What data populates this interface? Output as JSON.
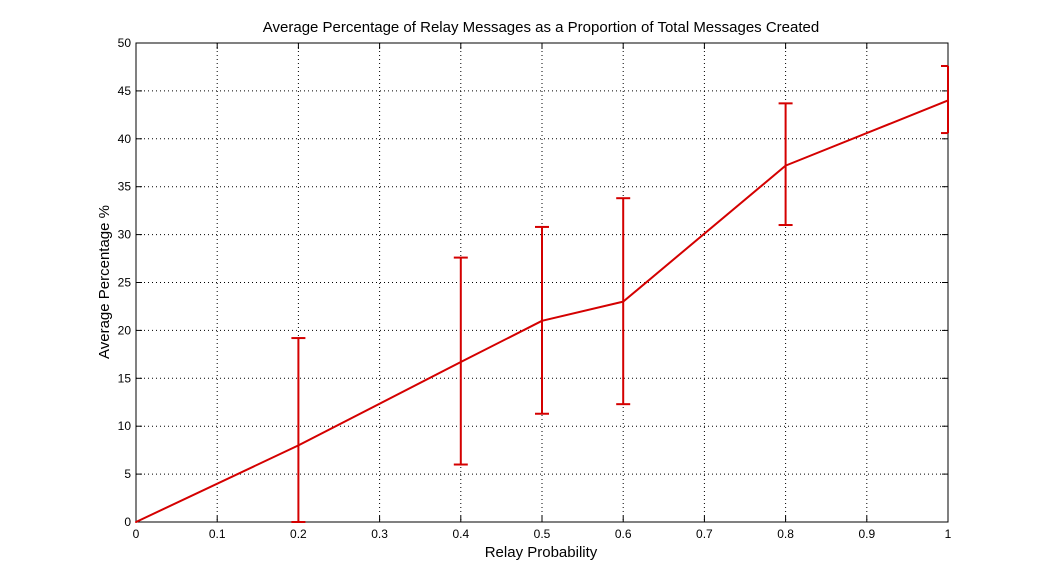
{
  "chart_data": {
    "type": "line",
    "title": "Average Percentage of Relay Messages as a Proportion of Total Messages Created",
    "xlabel": "Relay Probability",
    "ylabel": "Average Percentage %",
    "xlim": [
      0,
      1
    ],
    "ylim": [
      0,
      50
    ],
    "grid": true,
    "x_ticks": [
      "0",
      "0.1",
      "0.2",
      "0.3",
      "0.4",
      "0.5",
      "0.6",
      "0.7",
      "0.8",
      "0.9",
      "1"
    ],
    "y_ticks": [
      "0",
      "5",
      "10",
      "15",
      "20",
      "25",
      "30",
      "35",
      "40",
      "45",
      "50"
    ],
    "x_tick_values": [
      0,
      0.1,
      0.2,
      0.3,
      0.4,
      0.5,
      0.6,
      0.7,
      0.8,
      0.9,
      1
    ],
    "y_tick_values": [
      0,
      5,
      10,
      15,
      20,
      25,
      30,
      35,
      40,
      45,
      50
    ],
    "series": [
      {
        "color": "#d40000",
        "x": [
          0,
          0.2,
          0.4,
          0.5,
          0.6,
          0.8,
          1
        ],
        "y": [
          0,
          8.0,
          16.7,
          21.0,
          23.0,
          37.2,
          44.0
        ],
        "error_lower": [
          0,
          0,
          6.0,
          11.3,
          12.3,
          31.0,
          40.6
        ],
        "error_upper": [
          0,
          19.2,
          27.6,
          30.8,
          33.8,
          43.7,
          47.6
        ]
      }
    ]
  }
}
